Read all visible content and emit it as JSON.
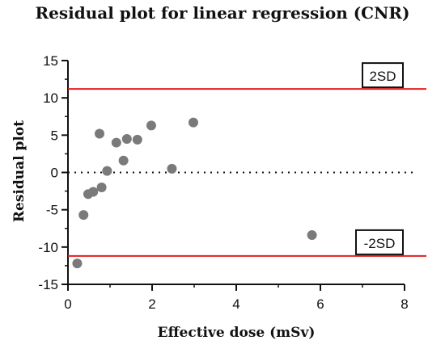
{
  "chart_data": {
    "type": "scatter",
    "title": "Residual plot for linear regression (CNR)",
    "xlabel": "Effective dose (mSv)",
    "ylabel": "Residual plot",
    "xlim": [
      0,
      8
    ],
    "ylim": [
      -15,
      15
    ],
    "x_ticks": [
      0,
      2,
      4,
      6,
      8
    ],
    "y_ticks": [
      15,
      10,
      5,
      0,
      -5,
      -10,
      -15
    ],
    "grid": false,
    "points": [
      {
        "x": 0.22,
        "y": -12.2
      },
      {
        "x": 0.37,
        "y": -5.7
      },
      {
        "x": 0.48,
        "y": -2.9
      },
      {
        "x": 0.6,
        "y": -2.6
      },
      {
        "x": 0.75,
        "y": 5.2
      },
      {
        "x": 0.8,
        "y": -2.0
      },
      {
        "x": 0.93,
        "y": 0.2
      },
      {
        "x": 1.15,
        "y": 4.0
      },
      {
        "x": 1.32,
        "y": 1.6
      },
      {
        "x": 1.4,
        "y": 4.5
      },
      {
        "x": 1.65,
        "y": 4.4
      },
      {
        "x": 1.98,
        "y": 6.3
      },
      {
        "x": 2.47,
        "y": 0.5
      },
      {
        "x": 2.98,
        "y": 6.7
      },
      {
        "x": 5.8,
        "y": -8.4
      }
    ],
    "reference_lines": [
      {
        "label": "2SD",
        "y": 11.2,
        "color": "#e02020"
      },
      {
        "label": "-2SD",
        "y": -11.2,
        "color": "#e02020"
      }
    ],
    "zero_line": {
      "y": 0,
      "style": "dotted"
    },
    "point_color": "#7a7a7a"
  }
}
